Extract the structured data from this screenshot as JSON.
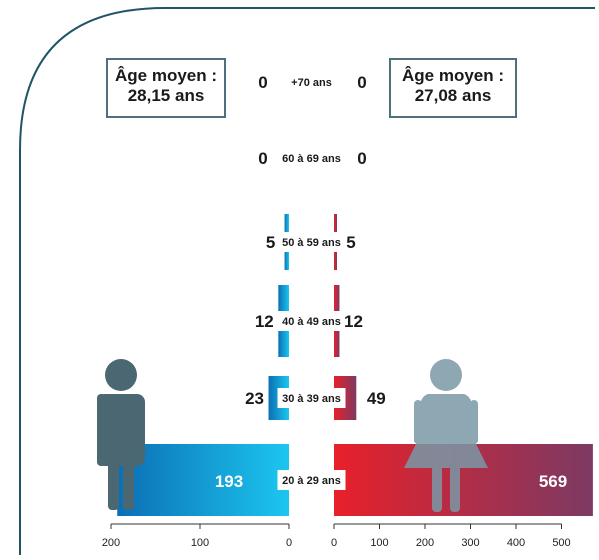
{
  "colors": {
    "frame": "#1f5566",
    "men_blue": "#0b6fb5",
    "men_light": "#1cc6ef",
    "women_red": "#e8202a",
    "women_purple": "#7c3a63",
    "men_icon": "#4a6772",
    "women_icon": "#7a98a6",
    "axis": "#333333"
  },
  "men_avg": {
    "label": "Âge moyen :",
    "value": "28,15 ans"
  },
  "women_avg": {
    "label": "Âge moyen :",
    "value": "27,08 ans"
  },
  "men_icon": "man-icon",
  "women_icon": "woman-icon",
  "chart_data": {
    "type": "bar",
    "orientation": "horizontal-back-to-back",
    "categories": [
      "+70 ans",
      "60 à 69 ans",
      "50 à 59 ans",
      "40 à 49 ans",
      "30 à 39 ans",
      "20 à 29 ans"
    ],
    "series": [
      {
        "values": [
          0,
          0,
          5,
          12,
          23,
          193
        ]
      },
      {
        "values": [
          0,
          0,
          5,
          12,
          49,
          569
        ]
      }
    ],
    "left_ticks": [
      "200",
      "100",
      "0"
    ],
    "right_ticks": [
      "0",
      "100",
      "200",
      "300",
      "400",
      "500"
    ],
    "xlim_left": [
      0,
      200
    ],
    "xlim_right": [
      0,
      500
    ]
  }
}
